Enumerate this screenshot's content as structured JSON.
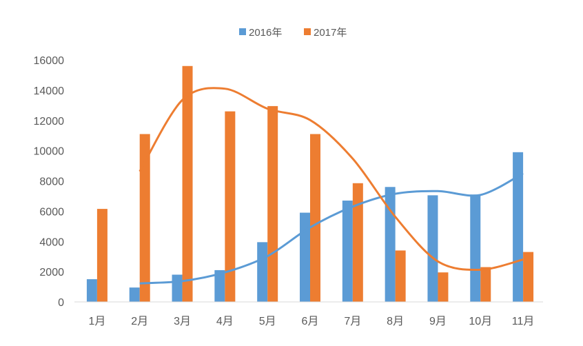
{
  "chart_data": {
    "type": "bar",
    "title": "",
    "xlabel": "",
    "ylabel": "",
    "categories": [
      "1月",
      "2月",
      "3月",
      "4月",
      "5月",
      "6月",
      "7月",
      "8月",
      "9月",
      "10月",
      "11月"
    ],
    "series": [
      {
        "name": "2016年",
        "color": "#5B9BD5",
        "values": [
          1500,
          950,
          1800,
          2100,
          3950,
          5900,
          6700,
          7600,
          7050,
          7100,
          9900
        ]
      },
      {
        "name": "2017年",
        "color": "#ED7D31",
        "values": [
          6150,
          11100,
          15600,
          12600,
          12950,
          11100,
          7850,
          3400,
          1950,
          2300,
          3300
        ]
      }
    ],
    "trendlines": [
      {
        "series": "2016年",
        "kind": "2-period moving average"
      },
      {
        "series": "2017年",
        "kind": "2-period moving average"
      }
    ],
    "ylim": [
      0,
      16000
    ],
    "yticks": [
      "0",
      "2000",
      "4000",
      "6000",
      "8000",
      "10000",
      "12000",
      "14000",
      "16000"
    ],
    "grid": false,
    "legend": "top"
  }
}
